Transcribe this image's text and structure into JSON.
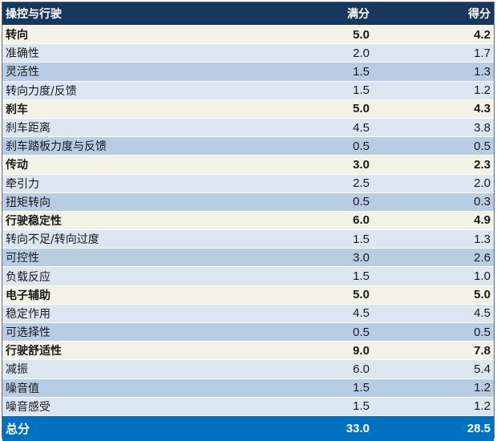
{
  "header": {
    "name": "操控与行驶",
    "max": "满分",
    "score": "得分"
  },
  "rows": [
    {
      "kind": "cat",
      "name": "转向",
      "max": "5.0",
      "score": "4.2"
    },
    {
      "kind": "sub",
      "name": "准确性",
      "max": "2.0",
      "score": "1.7"
    },
    {
      "kind": "sub",
      "name": "灵活性",
      "max": "1.5",
      "score": "1.3"
    },
    {
      "kind": "sub",
      "name": "转向力度/反馈",
      "max": "1.5",
      "score": "1.2"
    },
    {
      "kind": "cat",
      "name": "刹车",
      "max": "5.0",
      "score": "4.3"
    },
    {
      "kind": "sub",
      "name": "刹车距离",
      "max": "4.5",
      "score": "3.8"
    },
    {
      "kind": "sub",
      "name": "刹车踏板力度与反馈",
      "max": "0.5",
      "score": "0.5"
    },
    {
      "kind": "cat",
      "name": "传动",
      "max": "3.0",
      "score": "2.3"
    },
    {
      "kind": "sub",
      "name": "牵引力",
      "max": "2.5",
      "score": "2.0"
    },
    {
      "kind": "sub",
      "name": "扭矩转向",
      "max": "0.5",
      "score": "0.3"
    },
    {
      "kind": "cat",
      "name": "行驶稳定性",
      "max": "6.0",
      "score": "4.9"
    },
    {
      "kind": "sub",
      "name": "转向不足/转向过度",
      "max": "1.5",
      "score": "1.3"
    },
    {
      "kind": "sub",
      "name": "可控性",
      "max": "3.0",
      "score": "2.6"
    },
    {
      "kind": "sub",
      "name": "负载反应",
      "max": "1.5",
      "score": "1.0"
    },
    {
      "kind": "cat",
      "name": "电子辅助",
      "max": "5.0",
      "score": "5.0"
    },
    {
      "kind": "sub",
      "name": "稳定作用",
      "max": "4.5",
      "score": "4.5"
    },
    {
      "kind": "sub",
      "name": "可选择性",
      "max": "0.5",
      "score": "0.5"
    },
    {
      "kind": "cat",
      "name": "行驶舒适性",
      "max": "9.0",
      "score": "7.8"
    },
    {
      "kind": "sub",
      "name": "减振",
      "max": "6.0",
      "score": "5.4"
    },
    {
      "kind": "sub",
      "name": "噪音值",
      "max": "1.5",
      "score": "1.2"
    },
    {
      "kind": "sub",
      "name": "噪音感受",
      "max": "1.5",
      "score": "1.2"
    }
  ],
  "total": {
    "name": "总分",
    "max": "33.0",
    "score": "28.5"
  }
}
